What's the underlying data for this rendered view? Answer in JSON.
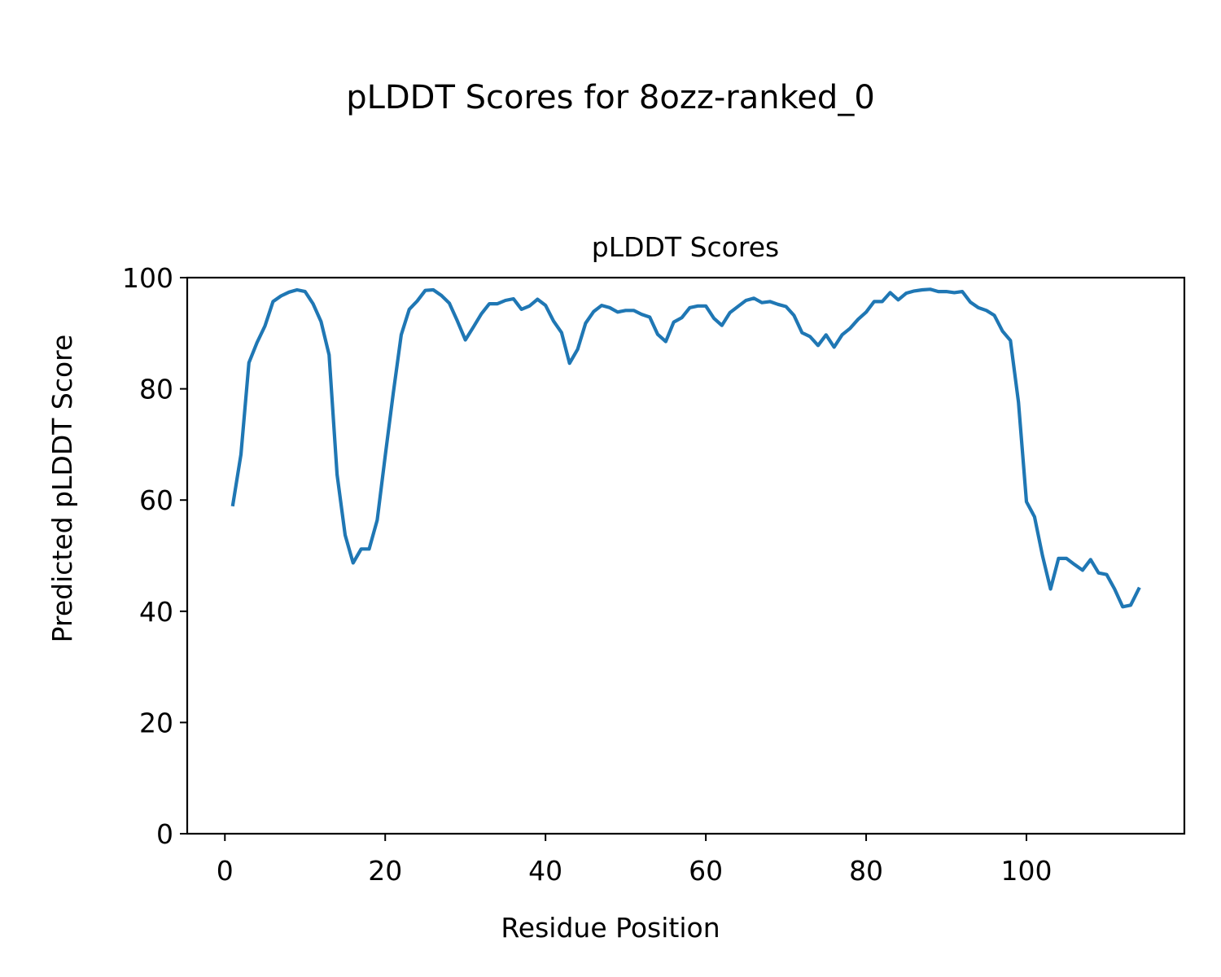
{
  "figure": {
    "suptitle": "pLDDT Scores for 8ozz-ranked_0"
  },
  "chart_data": {
    "type": "line",
    "title": "pLDDT Scores",
    "xlabel": "Residue Position",
    "ylabel": "Predicted pLDDT Score",
    "xlim": [
      -4.7,
      119.7
    ],
    "ylim": [
      0,
      100
    ],
    "xticks": [
      0,
      20,
      40,
      60,
      80,
      100
    ],
    "yticks": [
      0,
      20,
      40,
      60,
      80,
      100
    ],
    "grid": false,
    "series_color": "#1f77b4",
    "series": [
      {
        "x": [
          1,
          2,
          3,
          4,
          5,
          6,
          7,
          8,
          9,
          10,
          11,
          12,
          13,
          14,
          15,
          16,
          17,
          18,
          19,
          20,
          21,
          22,
          23,
          24,
          25,
          26,
          27,
          28,
          29,
          30,
          31,
          32,
          33,
          34,
          35,
          36,
          37,
          38,
          39,
          40,
          41,
          42,
          43,
          44,
          45,
          46,
          47,
          48,
          49,
          50,
          51,
          52,
          53,
          54,
          55,
          56,
          57,
          58,
          59,
          60,
          61,
          62,
          63,
          64,
          65,
          66,
          67,
          68,
          69,
          70,
          71,
          72,
          73,
          74,
          75,
          76,
          77,
          78,
          79,
          80,
          81,
          82,
          83,
          84,
          85,
          86,
          87,
          88,
          89,
          90,
          91,
          92,
          93,
          94,
          95,
          96,
          97,
          98,
          99,
          100,
          101,
          102,
          103,
          104,
          105,
          106,
          107,
          108,
          109,
          110,
          111,
          112,
          113,
          114
        ],
        "y": [
          59.2,
          68.2,
          84.7,
          88.3,
          91.3,
          95.7,
          96.7,
          97.4,
          97.8,
          97.5,
          95.3,
          92.1,
          86.1,
          64.6,
          53.7,
          48.7,
          51.2,
          51.2,
          56.4,
          67.9,
          79.2,
          89.7,
          94.3,
          95.8,
          97.7,
          97.8,
          96.8,
          95.4,
          92.2,
          88.8,
          91.1,
          93.5,
          95.3,
          95.3,
          95.9,
          96.2,
          94.3,
          94.9,
          96.1,
          95.0,
          92.2,
          90.1,
          84.6,
          87.1,
          91.8,
          93.9,
          95.0,
          94.6,
          93.8,
          94.1,
          94.1,
          93.4,
          92.9,
          89.8,
          88.5,
          92.0,
          92.8,
          94.6,
          94.9,
          94.9,
          92.7,
          91.4,
          93.7,
          94.8,
          95.9,
          96.3,
          95.5,
          95.7,
          95.2,
          94.8,
          93.2,
          90.1,
          89.4,
          87.8,
          89.7,
          87.5,
          89.7,
          90.9,
          92.5,
          93.8,
          95.7,
          95.7,
          97.3,
          96.0,
          97.2,
          97.6,
          97.8,
          97.9,
          97.5,
          97.5,
          97.3,
          97.5,
          95.6,
          94.6,
          94.1,
          93.2,
          90.4,
          88.7,
          77.6,
          59.7,
          57.0,
          50.0,
          44.0,
          49.5,
          49.5,
          48.4,
          47.4,
          49.3,
          46.9,
          46.6,
          44.0,
          40.8,
          41.1,
          44.0
        ]
      }
    ]
  }
}
